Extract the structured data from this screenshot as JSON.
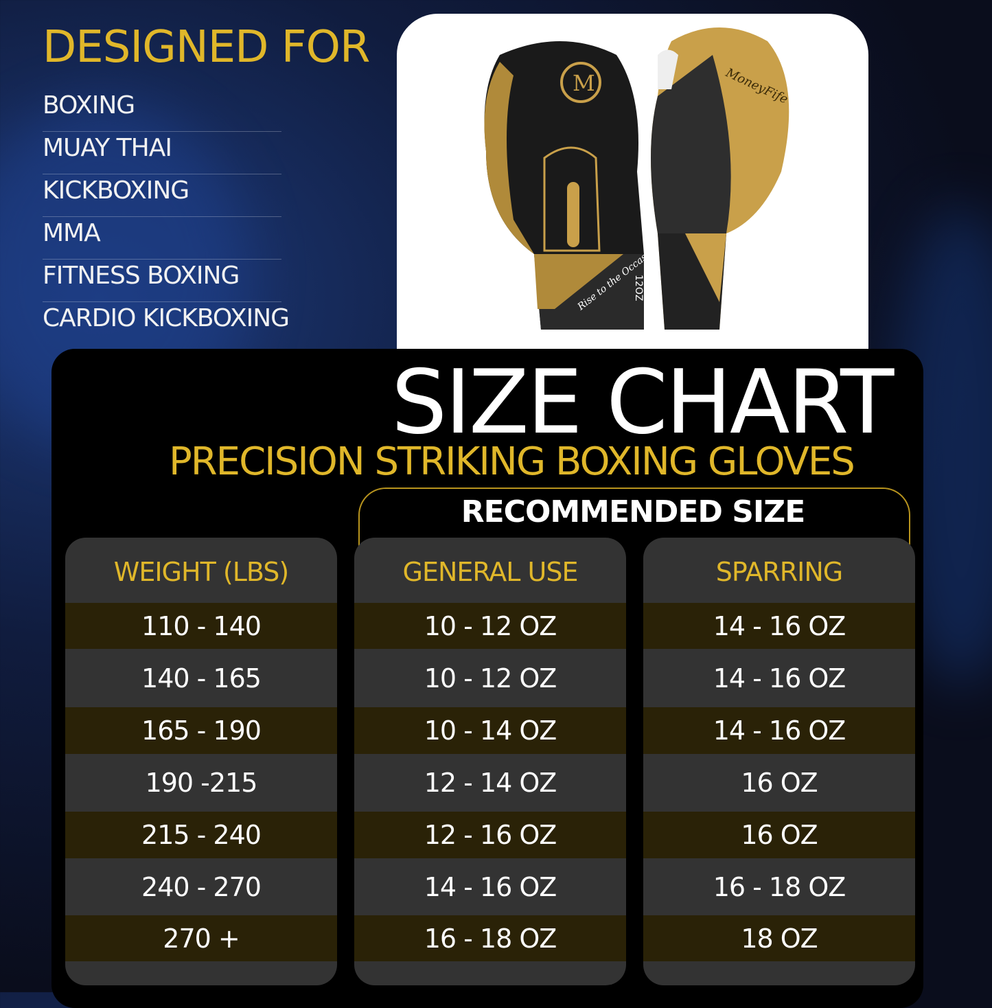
{
  "designed_for": {
    "heading": "DESIGNED FOR",
    "items": [
      "BOXING",
      "MUAY THAI",
      "KICKBOXING",
      "MMA",
      "FITNESS BOXING",
      "CARDIO KICKBOXING"
    ]
  },
  "product_image": {
    "logo_text": "M",
    "glove_print": [
      "Rise to the Occasion",
      "12OZ",
      "MoneyFife"
    ]
  },
  "size_chart": {
    "title": "SIZE CHART",
    "subtitle": "PRECISION STRIKING BOXING GLOVES",
    "recommended_label": "RECOMMENDED SIZE",
    "columns": [
      {
        "header": "WEIGHT (LBS)",
        "cells": [
          "110 - 140",
          "140 - 165",
          "165 - 190",
          "190 -215",
          "215 - 240",
          "240 - 270",
          "270 +"
        ]
      },
      {
        "header": "GENERAL USE",
        "cells": [
          "10 - 12 OZ",
          "10 - 12 OZ",
          "10 - 14 OZ",
          "12 - 14  OZ",
          "12 - 16 OZ",
          "14 - 16 OZ",
          "16 - 18 OZ"
        ]
      },
      {
        "header": "SPARRING",
        "cells": [
          "14 - 16 OZ",
          "14 - 16 OZ",
          "14 - 16 OZ",
          "16 OZ",
          "16 OZ",
          "16 - 18 OZ",
          "18 OZ"
        ]
      }
    ]
  },
  "colors": {
    "gold": "#e0b72a",
    "row_dark_gold": "#2a2207",
    "row_gray": "#333333",
    "panel": "#000000"
  }
}
